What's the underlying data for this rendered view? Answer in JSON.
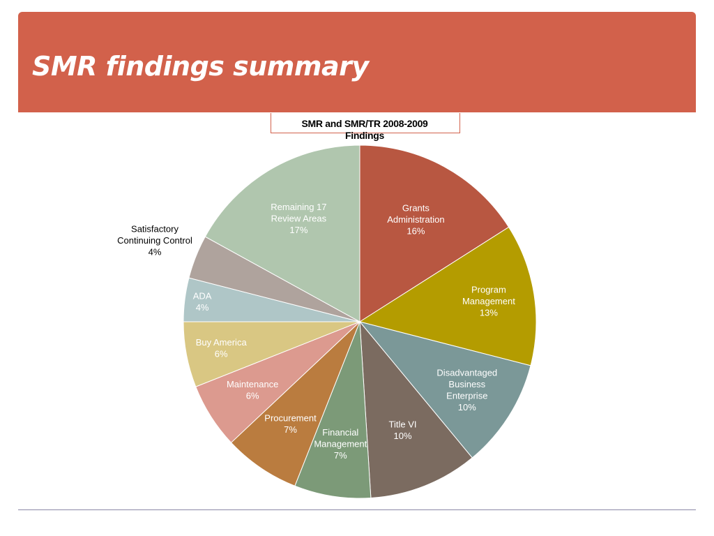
{
  "slide": {
    "title": "SMR findings summary"
  },
  "chart_data": {
    "type": "pie",
    "title": "SMR and SMR/TR 2008-2009 Findings",
    "title_lines": [
      "SMR and SMR/TR 2008-2009",
      "Findings"
    ],
    "unit": "%",
    "start": "12 o'clock",
    "direction": "clockwise",
    "slices": [
      {
        "label": "Grants Administration",
        "lines": [
          "Grants",
          "Administration",
          "16%"
        ],
        "value": 16,
        "color": "#b85741",
        "text_color": "#ffffff"
      },
      {
        "label": "Program Management",
        "lines": [
          "Program",
          "Management",
          "13%"
        ],
        "value": 13,
        "color": "#b49c00",
        "text_color": "#ffffff"
      },
      {
        "label": "Disadvantaged Business Enterprise",
        "lines": [
          "Disadvantaged",
          "Business",
          "Enterprise",
          "10%"
        ],
        "value": 10,
        "color": "#7b9898",
        "text_color": "#ffffff"
      },
      {
        "label": "Title VI",
        "lines": [
          "Title VI",
          "10%"
        ],
        "value": 10,
        "color": "#7b6b60",
        "text_color": "#ffffff"
      },
      {
        "label": "Financial Management",
        "lines": [
          "Financial",
          "Management",
          "7%"
        ],
        "value": 7,
        "color": "#7c9a78",
        "text_color": "#ffffff"
      },
      {
        "label": "Procurement",
        "lines": [
          "Procurement",
          "7%"
        ],
        "value": 7,
        "color": "#ba7c3f",
        "text_color": "#ffffff"
      },
      {
        "label": "Maintenance",
        "lines": [
          "Maintenance",
          "6%"
        ],
        "value": 6,
        "color": "#dc9a8f",
        "text_color": "#ffffff"
      },
      {
        "label": "Buy America",
        "lines": [
          "Buy America",
          "6%"
        ],
        "value": 6,
        "color": "#d9c783",
        "text_color": "#ffffff"
      },
      {
        "label": "ADA",
        "lines": [
          "ADA",
          "4%"
        ],
        "value": 4,
        "color": "#afc6c7",
        "text_color": "#ffffff"
      },
      {
        "label": "Satisfactory Continuing Control",
        "lines": [
          "Satisfactory",
          "Continuing Control",
          "4%"
        ],
        "value": 4,
        "color": "#afa39d",
        "text_color": "#000000"
      },
      {
        "label": "Remaining 17 Review Areas",
        "lines": [
          "Remaining 17",
          "Review Areas",
          "17%"
        ],
        "value": 17,
        "color": "#b0c6ae",
        "text_color": "#ffffff"
      }
    ]
  }
}
